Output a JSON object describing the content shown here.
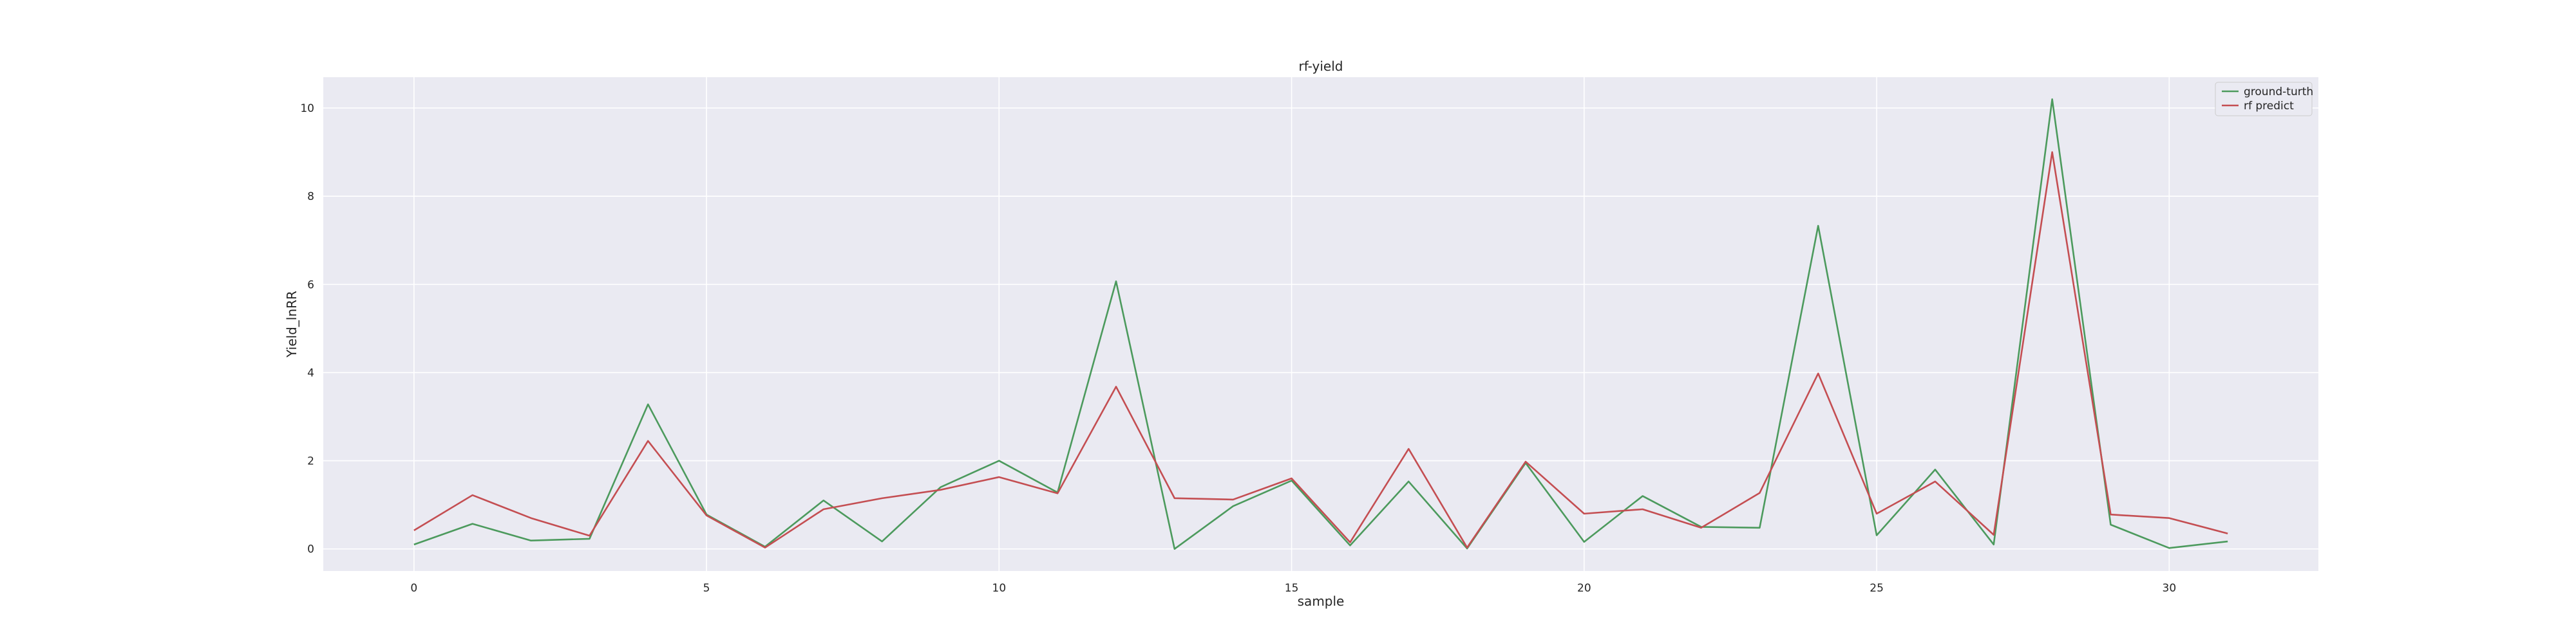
{
  "chart_data": {
    "type": "line",
    "title": "rf-yield",
    "xlabel": "sample",
    "ylabel": "Yield_lnRR",
    "xlim": [
      -1.55,
      32.55
    ],
    "ylim": [
      -0.5,
      10.7
    ],
    "xticks": [
      0,
      5,
      10,
      15,
      20,
      25,
      30
    ],
    "yticks": [
      0,
      2,
      4,
      6,
      8,
      10
    ],
    "grid": true,
    "legend_position": "top-right",
    "x": [
      0,
      1,
      2,
      3,
      4,
      5,
      6,
      7,
      8,
      9,
      10,
      11,
      12,
      13,
      14,
      15,
      16,
      17,
      18,
      19,
      20,
      21,
      22,
      23,
      24,
      25,
      26,
      27,
      28,
      29,
      30,
      31
    ],
    "series": [
      {
        "name": "ground-turth",
        "color": "#4c9a5d",
        "values": [
          0.1,
          0.57,
          0.19,
          0.23,
          3.28,
          0.78,
          0.05,
          1.1,
          0.17,
          1.4,
          2.0,
          1.28,
          6.07,
          0.0,
          0.97,
          1.55,
          0.08,
          1.53,
          0.01,
          1.95,
          0.16,
          1.2,
          0.5,
          0.48,
          7.33,
          0.31,
          1.8,
          0.1,
          10.2,
          0.55,
          0.02,
          0.17
        ]
      },
      {
        "name": "rf predict",
        "color": "#c44e52",
        "values": [
          0.42,
          1.22,
          0.7,
          0.3,
          2.45,
          0.76,
          0.03,
          0.9,
          1.15,
          1.34,
          1.63,
          1.26,
          3.68,
          1.15,
          1.12,
          1.6,
          0.15,
          2.27,
          0.03,
          1.98,
          0.8,
          0.9,
          0.48,
          1.27,
          3.98,
          0.8,
          1.53,
          0.32,
          9.0,
          0.78,
          0.7,
          0.35
        ]
      }
    ]
  },
  "colors": {
    "plot_background": "#eaeaf2",
    "grid": "#ffffff",
    "text": "#262626"
  }
}
